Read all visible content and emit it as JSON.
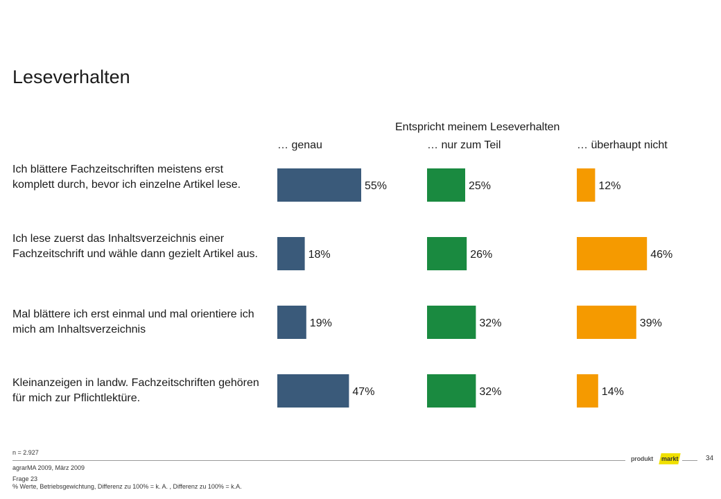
{
  "title": "Leseverhalten",
  "chart_data": {
    "type": "bar",
    "orientation": "horizontal",
    "title": "Entspricht meinem Leseverhalten",
    "categories": [
      "Ich blättere Fachzeitschriften meistens erst komplett durch, bevor ich einzelne Artikel lese.",
      "Ich lese zuerst das Inhaltsverzeichnis einer Fachzeitschrift und wähle dann gezielt Artikel aus.",
      "Mal blättere ich erst einmal und mal orientiere ich mich am Inhaltsverzeichnis",
      "Kleinanzeigen in landw. Fachzeitschriften gehören für mich zur Pflichtlektüre."
    ],
    "series": [
      {
        "name": "… genau",
        "color": "#3a5a7a",
        "values": [
          55,
          18,
          19,
          47
        ],
        "labels": [
          "55%",
          "18%",
          "19%",
          "47%"
        ]
      },
      {
        "name": "… nur zum Teil",
        "color": "#1a8a40",
        "values": [
          25,
          26,
          32,
          32
        ],
        "labels": [
          "25%",
          "26%",
          "32%",
          "32%"
        ]
      },
      {
        "name": "… überhaupt nicht",
        "color": "#f59a00",
        "values": [
          12,
          46,
          39,
          14
        ],
        "labels": [
          "12%",
          "46%",
          "39%",
          "14%"
        ]
      }
    ],
    "unit": "%",
    "grid": false
  },
  "footer": {
    "n": "n = 2.927",
    "source": "agrarMA 2009, März 2009",
    "question": "Frage 23",
    "note": "% Werte, Betriebsgewichtung, Differenz zu 100% = k. A. , Differenz zu 100% = k.A.",
    "page": "34",
    "logo_left": "produkt",
    "logo_right": "markt"
  }
}
